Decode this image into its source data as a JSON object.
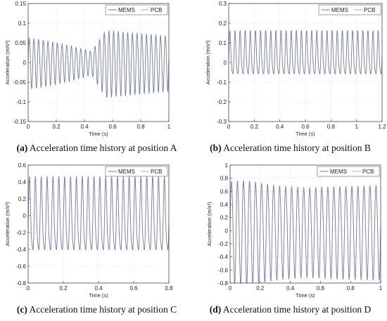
{
  "series_names": [
    "MEMS",
    "PCB"
  ],
  "colors": {
    "MEMS": "#6b7fb8",
    "PCB": "#e0a45c"
  },
  "panels": [
    {
      "id": "A",
      "caption_letter": "(a)",
      "caption_text": "Acceleration time history at position A",
      "chart_data": {
        "type": "line",
        "xlabel": "Time (s)",
        "ylabel": "Acceleration (m/s²)",
        "xlim": [
          0,
          1
        ],
        "ylim": [
          -0.15,
          0.15
        ],
        "xticks": [
          0,
          0.2,
          0.4,
          0.6,
          0.8,
          1
        ],
        "xtick_labels": [
          "0",
          "0.2",
          "0.4",
          "0.6",
          "0.8",
          "1"
        ],
        "yticks": [
          -0.15,
          -0.1,
          -0.05,
          0,
          0.05,
          0.1,
          0.15
        ],
        "ytick_labels": [
          "-0.15",
          "-0.1",
          "-0.05",
          "0",
          "0.05",
          "0.1",
          "0.15"
        ],
        "grid": true,
        "legend": "top-right",
        "signal": {
          "frequency": 30,
          "envelope_t": [
            0,
            0.1,
            0.3,
            0.45,
            0.55,
            0.7,
            0.85,
            1
          ],
          "envelope_amp": [
            0.065,
            0.06,
            0.045,
            0.03,
            0.085,
            0.08,
            0.075,
            0.07
          ]
        },
        "series": [
          {
            "name": "MEMS"
          },
          {
            "name": "PCB"
          }
        ]
      }
    },
    {
      "id": "B",
      "caption_letter": "(b)",
      "caption_text": "Acceleration time history at position B",
      "chart_data": {
        "type": "line",
        "xlabel": "Time (s)",
        "ylabel": "Acceleration (m/s²)",
        "xlim": [
          0,
          1.2
        ],
        "ylim": [
          -0.3,
          0.3
        ],
        "xticks": [
          0,
          0.2,
          0.4,
          0.6,
          0.8,
          1,
          1.2
        ],
        "xtick_labels": [
          "0",
          "0.2",
          "0.4",
          "0.6",
          "0.8",
          "1",
          "1.2"
        ],
        "yticks": [
          -0.3,
          -0.2,
          -0.1,
          0,
          0.1,
          0.2,
          0.3
        ],
        "ytick_labels": [
          "-0.3",
          "-0.2",
          "-0.1",
          "0",
          "0.1",
          "0.2",
          "0.3"
        ],
        "grid": true,
        "legend": "top-right",
        "signal": {
          "frequency": 25,
          "max": 0.165,
          "min": -0.1
        },
        "series": [
          {
            "name": "MEMS"
          },
          {
            "name": "PCB"
          }
        ]
      }
    },
    {
      "id": "C",
      "caption_letter": "(c)",
      "caption_text": "Acceleration time history at position C",
      "chart_data": {
        "type": "line",
        "xlabel": "Time (s)",
        "ylabel": "Acceleration (m/s²)",
        "xlim": [
          0,
          0.8
        ],
        "ylim": [
          -0.8,
          0.6
        ],
        "xticks": [
          0,
          0.2,
          0.4,
          0.6,
          0.8
        ],
        "xtick_labels": [
          "0",
          "0.2",
          "0.4",
          "0.6",
          "0.8"
        ],
        "yticks": [
          -0.8,
          -0.6,
          -0.4,
          -0.2,
          0,
          0.2,
          0.4,
          0.6
        ],
        "ytick_labels": [
          "-0.8",
          "-0.6",
          "-0.4",
          "-0.2",
          "0",
          "0.2",
          "0.4",
          "0.6"
        ],
        "grid": true,
        "legend": "top-right",
        "signal": {
          "frequency": 30,
          "max": 0.47,
          "min": -0.57
        },
        "series": [
          {
            "name": "MEMS"
          },
          {
            "name": "PCB"
          }
        ]
      }
    },
    {
      "id": "D",
      "caption_letter": "(d)",
      "caption_text": "Acceleration time history at position D",
      "chart_data": {
        "type": "line",
        "xlabel": "Time (s)",
        "ylabel": "Acceleration (m/s²)",
        "xlim": [
          0,
          1
        ],
        "ylim": [
          -0.8,
          1
        ],
        "xticks": [
          0,
          0.2,
          0.4,
          0.6,
          0.8,
          1
        ],
        "xtick_labels": [
          "0",
          "0.2",
          "0.4",
          "0.6",
          "0.8",
          "1"
        ],
        "yticks": [
          -0.8,
          -0.6,
          -0.4,
          -0.2,
          0,
          0.2,
          0.4,
          0.6,
          0.8,
          1
        ],
        "ytick_labels": [
          "-0.8",
          "-0.6",
          "-0.4",
          "-0.2",
          "0",
          "0.2",
          "0.4",
          "0.6",
          "0.8",
          "1"
        ],
        "grid": true,
        "legend": "top-right",
        "signal": {
          "frequency": 25,
          "envelope_t": [
            0,
            0.1,
            0.3,
            0.5,
            0.7,
            1
          ],
          "envelope_amp": [
            0.78,
            0.8,
            0.72,
            0.68,
            0.7,
            0.72
          ]
        },
        "series": [
          {
            "name": "MEMS"
          },
          {
            "name": "PCB"
          }
        ]
      }
    }
  ]
}
